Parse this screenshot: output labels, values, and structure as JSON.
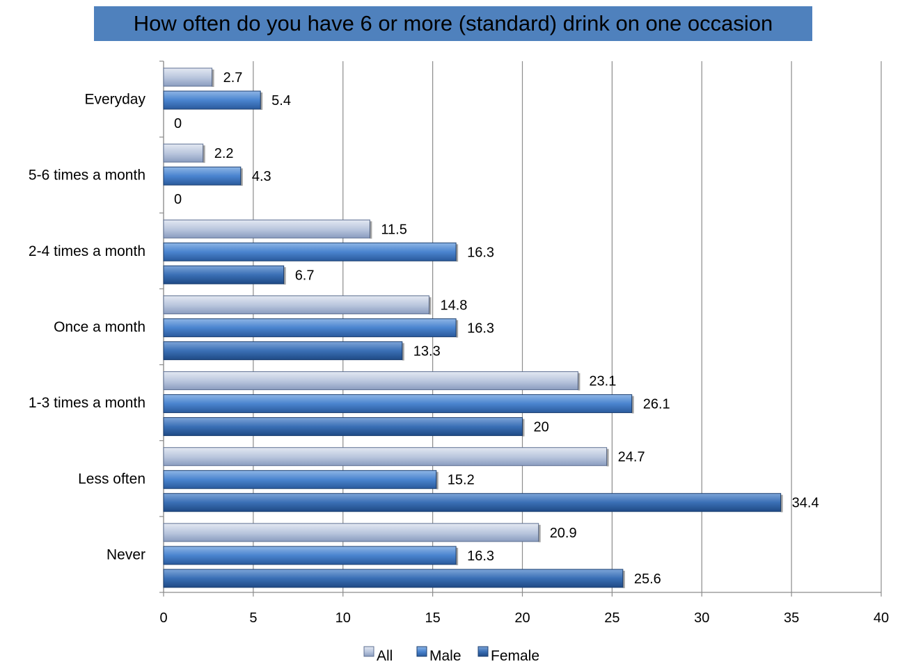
{
  "title": "How often do you have 6 or more (standard) drink on one occasion",
  "chart_data": {
    "type": "bar",
    "orientation": "horizontal",
    "title": "How often do you have 6 or more (standard) drink on one occasion",
    "categories": [
      "Everyday",
      "5-6 times a month",
      "2-4 times a month",
      "Once a month",
      "1-3 times a month",
      "Less often",
      "Never"
    ],
    "series": [
      {
        "name": "All",
        "color": "#b9c6dd",
        "values": [
          2.7,
          2.2,
          11.5,
          14.8,
          23.1,
          24.7,
          20.9
        ]
      },
      {
        "name": "Male",
        "color": "#4f86cc",
        "values": [
          5.4,
          4.3,
          16.3,
          16.3,
          26.1,
          15.2,
          16.3
        ]
      },
      {
        "name": "Female",
        "color": "#3a6fb5",
        "values": [
          0,
          0,
          6.7,
          13.3,
          20,
          34.4,
          25.6
        ]
      }
    ],
    "xlim": [
      0,
      40
    ],
    "xticks": [
      0,
      5,
      10,
      15,
      20,
      25,
      30,
      35,
      40
    ],
    "grid": true,
    "legend_position": "bottom",
    "xlabel": "",
    "ylabel": ""
  }
}
